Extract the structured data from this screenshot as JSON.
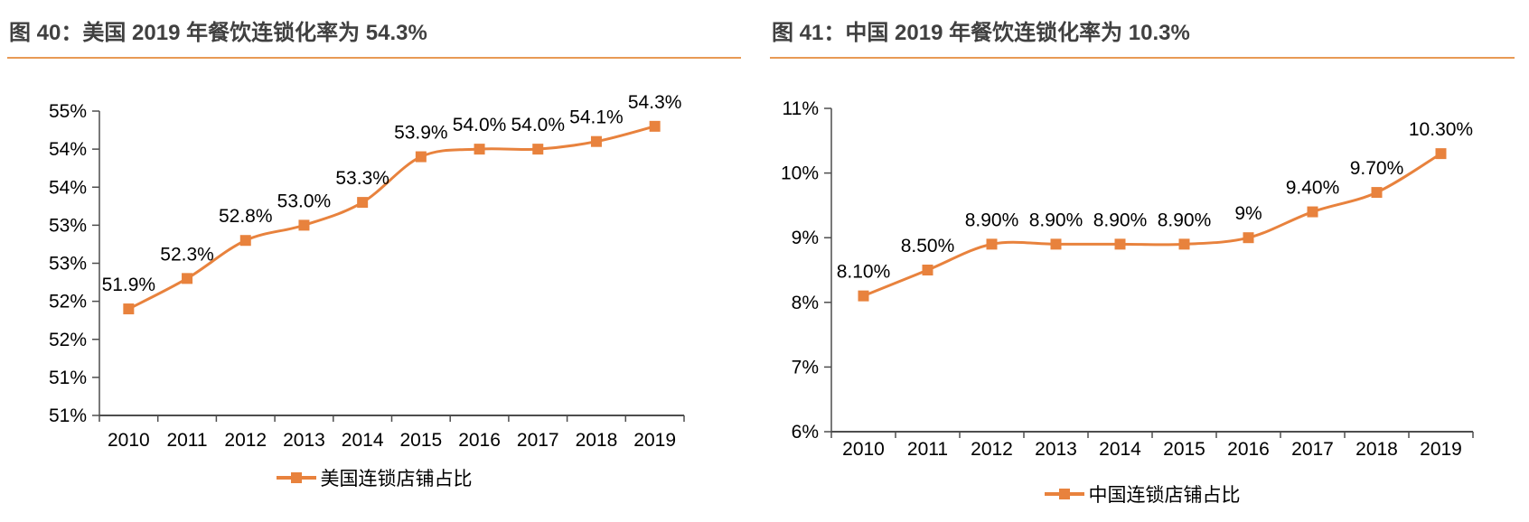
{
  "colors": {
    "accent_orange": "#E8823D",
    "rule_orange": "#E89A55",
    "title_text": "#404040",
    "axis_line": "#4D4D4D",
    "label_text": "#000000"
  },
  "chart_data": [
    {
      "type": "line",
      "title": "图 40：美国 2019 年餐饮连锁化率为 54.3%",
      "series_name": "美国连锁店铺占比",
      "categories": [
        "2010",
        "2011",
        "2012",
        "2013",
        "2014",
        "2015",
        "2016",
        "2017",
        "2018",
        "2019"
      ],
      "values": [
        51.9,
        52.3,
        52.8,
        53.0,
        53.3,
        53.9,
        54.0,
        54.0,
        54.1,
        54.3
      ],
      "data_labels": [
        "51.9%",
        "52.3%",
        "52.8%",
        "53.0%",
        "53.3%",
        "53.9%",
        "54.0%",
        "54.0%",
        "54.1%",
        "54.3%"
      ],
      "ylim": [
        50.5,
        54.5
      ],
      "y_ticks": [
        {
          "value": 54.5,
          "label": "55%"
        },
        {
          "value": 54.0,
          "label": "54%"
        },
        {
          "value": 53.5,
          "label": "54%"
        },
        {
          "value": 53.0,
          "label": "53%"
        },
        {
          "value": 52.5,
          "label": "53%"
        },
        {
          "value": 52.0,
          "label": "52%"
        },
        {
          "value": 51.5,
          "label": "52%"
        },
        {
          "value": 51.0,
          "label": "51%"
        },
        {
          "value": 50.5,
          "label": "51%"
        }
      ],
      "grid": false,
      "marker": "square",
      "line_color": "#E8823D",
      "legend_position": "bottom"
    },
    {
      "type": "line",
      "title": "图 41：中国 2019 年餐饮连锁化率为 10.3%",
      "series_name": "中国连锁店铺占比",
      "categories": [
        "2010",
        "2011",
        "2012",
        "2013",
        "2014",
        "2015",
        "2016",
        "2017",
        "2018",
        "2019"
      ],
      "values": [
        8.1,
        8.5,
        8.9,
        8.9,
        8.9,
        8.9,
        9.0,
        9.4,
        9.7,
        10.3
      ],
      "data_labels": [
        "8.10%",
        "8.50%",
        "8.90%",
        "8.90%",
        "8.90%",
        "8.90%",
        "9%",
        "9.40%",
        "9.70%",
        "10.30%"
      ],
      "ylim": [
        6,
        11
      ],
      "y_ticks": [
        {
          "value": 11,
          "label": "11%"
        },
        {
          "value": 10,
          "label": "10%"
        },
        {
          "value": 9,
          "label": "9%"
        },
        {
          "value": 8,
          "label": "8%"
        },
        {
          "value": 7,
          "label": "7%"
        },
        {
          "value": 6,
          "label": "6%"
        }
      ],
      "grid": false,
      "marker": "square",
      "line_color": "#E8823D",
      "legend_position": "bottom"
    }
  ]
}
